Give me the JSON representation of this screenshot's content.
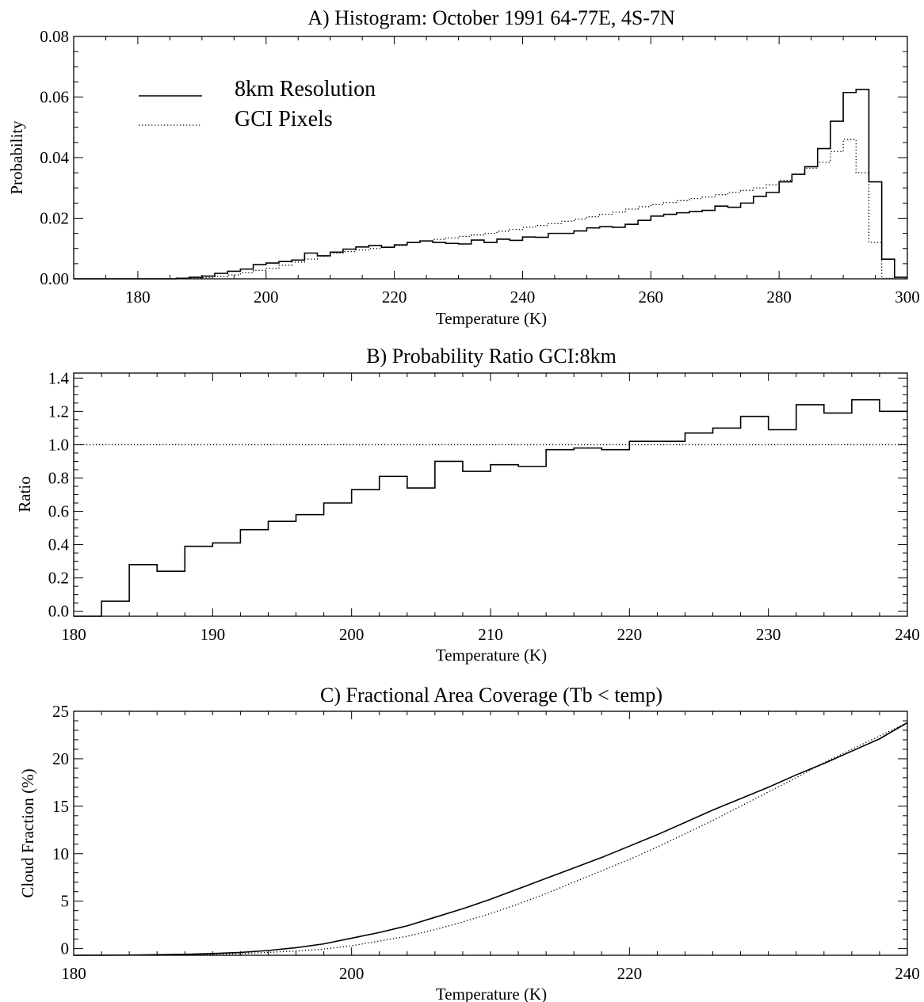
{
  "chart_data": [
    {
      "type": "line",
      "title": "A) Histogram: October 1991 64-77E, 4S-7N",
      "xlabel": "Temperature (K)",
      "ylabel": "Probability",
      "xlim": [
        170,
        300
      ],
      "ylim": [
        0,
        0.08
      ],
      "xticks": [
        180,
        200,
        220,
        240,
        260,
        280,
        300
      ],
      "xtick_labels": [
        "180",
        "200",
        "220",
        "240",
        "260",
        "280",
        "300"
      ],
      "yticks": [
        0,
        0.02,
        0.04,
        0.06,
        0.08
      ],
      "ytick_labels": [
        "0.00",
        "0.02",
        "0.04",
        "0.06",
        "0.08"
      ],
      "step": true,
      "bin_width": 2,
      "legend": {
        "position": "top-left"
      },
      "series": [
        {
          "name": "8km Resolution",
          "style": "solid",
          "x": [
            170,
            172,
            174,
            176,
            178,
            180,
            182,
            184,
            186,
            188,
            190,
            192,
            194,
            196,
            198,
            200,
            202,
            204,
            206,
            208,
            210,
            212,
            214,
            216,
            218,
            220,
            222,
            224,
            226,
            228,
            230,
            232,
            234,
            236,
            238,
            240,
            242,
            244,
            246,
            248,
            250,
            252,
            254,
            256,
            258,
            260,
            262,
            264,
            266,
            268,
            270,
            272,
            274,
            276,
            278,
            280,
            282,
            284,
            286,
            288,
            290,
            292,
            294,
            296,
            298
          ],
          "values": [
            0,
            0,
            0,
            0,
            0,
            0,
            0,
            0,
            0.0002,
            0.0005,
            0.0009,
            0.0018,
            0.0025,
            0.0032,
            0.0047,
            0.0052,
            0.0057,
            0.0062,
            0.0085,
            0.0076,
            0.0088,
            0.0098,
            0.0105,
            0.011,
            0.0104,
            0.0112,
            0.012,
            0.0125,
            0.012,
            0.0117,
            0.0115,
            0.0128,
            0.012,
            0.0131,
            0.0127,
            0.0138,
            0.0137,
            0.015,
            0.015,
            0.0158,
            0.0168,
            0.0172,
            0.017,
            0.018,
            0.0193,
            0.0207,
            0.0213,
            0.0218,
            0.0222,
            0.0226,
            0.024,
            0.0236,
            0.025,
            0.0272,
            0.0285,
            0.032,
            0.0345,
            0.037,
            0.043,
            0.052,
            0.0615,
            0.0625,
            0.032,
            0.0065,
            0.0005
          ]
        },
        {
          "name": "GCI Pixels",
          "style": "dotted",
          "x": [
            170,
            172,
            174,
            176,
            178,
            180,
            182,
            184,
            186,
            188,
            190,
            192,
            194,
            196,
            198,
            200,
            202,
            204,
            206,
            208,
            210,
            212,
            214,
            216,
            218,
            220,
            222,
            224,
            226,
            228,
            230,
            232,
            234,
            236,
            238,
            240,
            242,
            244,
            246,
            248,
            250,
            252,
            254,
            256,
            258,
            260,
            262,
            264,
            266,
            268,
            270,
            272,
            274,
            276,
            278,
            280,
            282,
            284,
            286,
            288,
            290,
            292,
            294,
            296,
            298
          ],
          "values": [
            0,
            0,
            0,
            0,
            0,
            0,
            0,
            0,
            0.0001,
            0.0002,
            0.0004,
            0.0008,
            0.0013,
            0.002,
            0.0028,
            0.0035,
            0.0045,
            0.0055,
            0.0065,
            0.0075,
            0.0085,
            0.009,
            0.0095,
            0.01,
            0.0105,
            0.011,
            0.012,
            0.0125,
            0.013,
            0.0135,
            0.014,
            0.0145,
            0.015,
            0.0157,
            0.0163,
            0.017,
            0.0176,
            0.0182,
            0.019,
            0.0197,
            0.0205,
            0.0213,
            0.022,
            0.023,
            0.0238,
            0.0245,
            0.0252,
            0.0258,
            0.0265,
            0.027,
            0.0278,
            0.0285,
            0.0292,
            0.03,
            0.031,
            0.0325,
            0.0345,
            0.0365,
            0.0385,
            0.042,
            0.046,
            0.035,
            0.012,
            0.0002,
            0
          ]
        }
      ]
    },
    {
      "type": "line",
      "title": "B) Probability Ratio  GCI:8km",
      "xlabel": "Temperature (K)",
      "ylabel": "Ratio",
      "xlim": [
        180,
        240
      ],
      "ylim": [
        -0.03,
        1.43
      ],
      "xticks": [
        180,
        190,
        200,
        210,
        220,
        230,
        240
      ],
      "xtick_labels": [
        "180",
        "190",
        "200",
        "210",
        "220",
        "230",
        "240"
      ],
      "yticks": [
        0,
        0.2,
        0.4,
        0.6,
        0.8,
        1.0,
        1.2,
        1.4
      ],
      "ytick_labels": [
        "0.0",
        "0.2",
        "0.4",
        "0.6",
        "0.8",
        "1.0",
        "1.2",
        "1.4"
      ],
      "step": true,
      "bin_width": 2,
      "reference_line": {
        "y": 1.0,
        "style": "dotted"
      },
      "series": [
        {
          "style": "solid",
          "x": [
            181,
            183,
            185,
            187,
            189,
            191,
            193,
            195,
            197,
            199,
            201,
            203,
            205,
            207,
            209,
            211,
            213,
            215,
            217,
            219,
            221,
            223,
            225,
            227,
            229,
            231,
            233,
            235,
            237,
            239
          ],
          "values": [
            -0.03,
            0.06,
            0.28,
            0.24,
            0.39,
            0.41,
            0.49,
            0.54,
            0.58,
            0.65,
            0.73,
            0.81,
            0.74,
            0.9,
            0.84,
            0.88,
            0.87,
            0.97,
            0.98,
            0.97,
            1.02,
            1.02,
            1.07,
            1.1,
            1.17,
            1.09,
            1.24,
            1.19,
            1.27,
            1.2
          ]
        }
      ]
    },
    {
      "type": "line",
      "title": "C) Fractional Area Coverage (Tb < temp)",
      "xlabel": "Temperature (K)",
      "ylabel": "Cloud Fraction (%)",
      "xlim": [
        180,
        240
      ],
      "ylim": [
        -0.7,
        25
      ],
      "xticks": [
        180,
        200,
        220,
        240
      ],
      "xtick_labels": [
        "180",
        "200",
        "220",
        "240"
      ],
      "yticks": [
        0,
        5,
        10,
        15,
        20,
        25
      ],
      "ytick_labels": [
        "0",
        "5",
        "10",
        "15",
        "20",
        "25"
      ],
      "series": [
        {
          "style": "solid",
          "x": [
            180,
            184,
            188,
            190,
            192,
            194,
            196,
            198,
            200,
            202,
            204,
            206,
            208,
            210,
            212,
            214,
            216,
            218,
            220,
            222,
            224,
            226,
            228,
            230,
            232,
            234,
            236,
            238,
            240
          ],
          "values": [
            -0.7,
            -0.68,
            -0.6,
            -0.52,
            -0.4,
            -0.2,
            0.1,
            0.5,
            1.1,
            1.7,
            2.4,
            3.3,
            4.2,
            5.2,
            6.3,
            7.4,
            8.5,
            9.6,
            10.8,
            12.0,
            13.3,
            14.6,
            15.8,
            17.0,
            18.3,
            19.5,
            20.8,
            22.1,
            23.8
          ]
        },
        {
          "style": "dotted",
          "x": [
            180,
            184,
            188,
            190,
            192,
            194,
            196,
            198,
            200,
            202,
            204,
            206,
            208,
            210,
            212,
            214,
            216,
            218,
            220,
            222,
            224,
            226,
            228,
            230,
            232,
            234,
            236,
            238,
            240
          ],
          "values": [
            -0.7,
            -0.69,
            -0.65,
            -0.6,
            -0.52,
            -0.4,
            -0.25,
            -0.05,
            0.3,
            0.8,
            1.3,
            2.0,
            2.8,
            3.7,
            4.7,
            5.8,
            7.0,
            8.2,
            9.4,
            10.7,
            12.1,
            13.5,
            15.0,
            16.5,
            18.0,
            19.6,
            21.0,
            22.4,
            23.8
          ]
        }
      ]
    }
  ]
}
